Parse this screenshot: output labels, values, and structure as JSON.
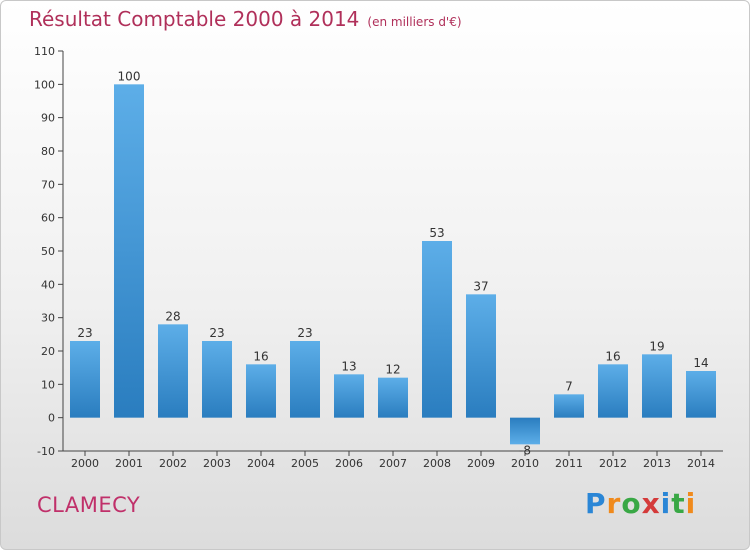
{
  "header": {
    "title": "Résultat Comptable 2000 à 2014",
    "subtitle": "(en milliers d'€)"
  },
  "footer": {
    "city": "CLAMECY",
    "logo": "Proxiti"
  },
  "colors": {
    "bar_light": "#5daee8",
    "bar_dark": "#2a7dbf",
    "title": "#b0305a"
  },
  "chart_data": {
    "type": "bar",
    "title": "Résultat Comptable 2000 à 2014",
    "subtitle": "(en milliers d'€)",
    "categories": [
      "2000",
      "2001",
      "2002",
      "2003",
      "2004",
      "2005",
      "2006",
      "2007",
      "2008",
      "2009",
      "2010",
      "2011",
      "2012",
      "2013",
      "2014"
    ],
    "values": [
      23,
      100,
      28,
      23,
      16,
      23,
      13,
      12,
      53,
      37,
      -8,
      7,
      16,
      19,
      14
    ],
    "ylim": [
      -10,
      110
    ],
    "yticks": [
      -10,
      0,
      10,
      20,
      30,
      40,
      50,
      60,
      70,
      80,
      90,
      100,
      110
    ],
    "grid": false,
    "legend": "none"
  }
}
